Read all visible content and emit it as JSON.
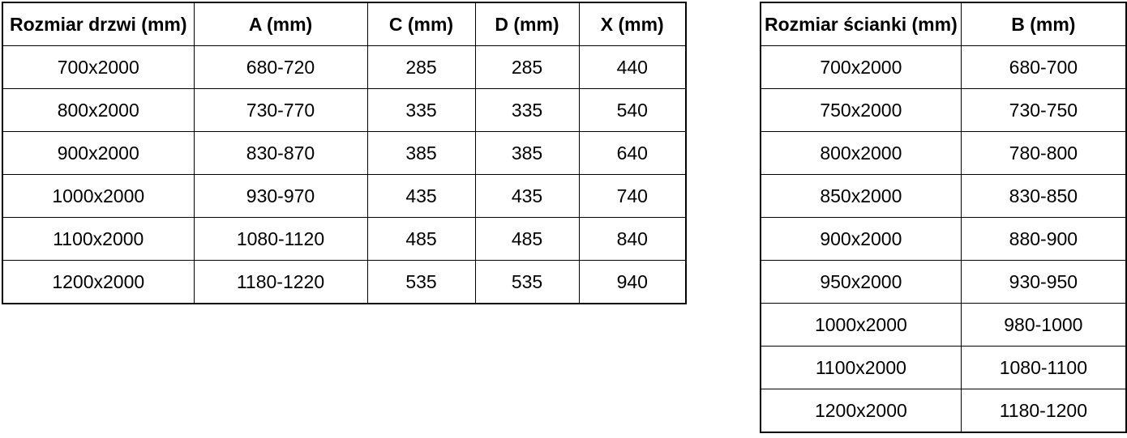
{
  "colors": {
    "background": "#ffffff",
    "border": "#000000",
    "text": "#000000"
  },
  "door_table": {
    "columns": [
      "Rozmiar drzwi (mm)",
      "A (mm)",
      "C (mm)",
      "D (mm)",
      "X (mm)"
    ],
    "rows": [
      [
        "700x2000",
        "680-720",
        "285",
        "285",
        "440"
      ],
      [
        "800x2000",
        "730-770",
        "335",
        "335",
        "540"
      ],
      [
        "900x2000",
        "830-870",
        "385",
        "385",
        "640"
      ],
      [
        "1000x2000",
        "930-970",
        "435",
        "435",
        "740"
      ],
      [
        "1100x2000",
        "1080-1120",
        "485",
        "485",
        "840"
      ],
      [
        "1200x2000",
        "1180-1220",
        "535",
        "535",
        "940"
      ]
    ]
  },
  "wall_table": {
    "columns": [
      "Rozmiar ścianki (mm)",
      "B (mm)"
    ],
    "rows": [
      [
        "700x2000",
        "680-700"
      ],
      [
        "750x2000",
        "730-750"
      ],
      [
        "800x2000",
        "780-800"
      ],
      [
        "850x2000",
        "830-850"
      ],
      [
        "900x2000",
        "880-900"
      ],
      [
        "950x2000",
        "930-950"
      ],
      [
        "1000x2000",
        "980-1000"
      ],
      [
        "1100x2000",
        "1080-1100"
      ],
      [
        "1200x2000",
        "1180-1200"
      ]
    ]
  }
}
